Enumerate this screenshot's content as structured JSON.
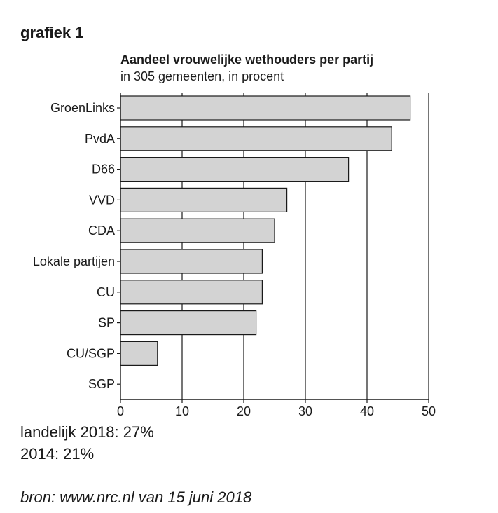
{
  "heading": "grafiek 1",
  "notes": {
    "line1": "landelijk 2018: 27%",
    "line2": "2014: 21%"
  },
  "source": "bron: www.nrc.nl van 15 juni 2018",
  "colors": {
    "bar_fill": "#d3d3d3",
    "bar_stroke": "#1a1a1a",
    "axis": "#1a1a1a"
  },
  "chart_data": {
    "type": "bar",
    "orientation": "horizontal",
    "title": "Aandeel vrouwelijke wethouders per partij",
    "subtitle": "in 305 gemeenten, in procent",
    "categories": [
      "GroenLinks",
      "PvdA",
      "D66",
      "VVD",
      "CDA",
      "Lokale partijen",
      "CU",
      "SP",
      "CU/SGP",
      "SGP"
    ],
    "values": [
      47,
      44,
      37,
      27,
      25,
      23,
      23,
      22,
      6,
      0
    ],
    "xlim": [
      0,
      50
    ],
    "xticks": [
      0,
      10,
      20,
      30,
      40,
      50
    ],
    "grid": "vertical lines at 10, 20, 30, 40, 50"
  }
}
